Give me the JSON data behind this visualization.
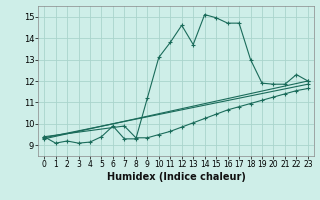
{
  "xlabel": "Humidex (Indice chaleur)",
  "xlim": [
    -0.5,
    23.5
  ],
  "ylim": [
    8.5,
    15.5
  ],
  "xticks": [
    0,
    1,
    2,
    3,
    4,
    5,
    6,
    7,
    8,
    9,
    10,
    11,
    12,
    13,
    14,
    15,
    16,
    17,
    18,
    19,
    20,
    21,
    22,
    23
  ],
  "yticks": [
    9,
    10,
    11,
    12,
    13,
    14,
    15
  ],
  "bg_color": "#ceeee8",
  "line_color": "#1a6b5a",
  "grid_color": "#aad4cc",
  "series": [
    {
      "x": [
        0,
        1,
        2,
        3,
        4,
        5,
        6,
        7,
        8,
        9,
        10,
        11,
        12,
        13,
        14,
        15,
        16,
        17,
        18,
        19,
        20,
        21,
        22,
        23
      ],
      "y": [
        9.4,
        9.1,
        9.2,
        9.1,
        9.15,
        9.4,
        9.9,
        9.3,
        9.3,
        11.2,
        13.1,
        13.8,
        14.6,
        13.7,
        15.1,
        14.95,
        14.7,
        14.7,
        13.0,
        11.9,
        11.85,
        11.85,
        12.3,
        12.0
      ]
    },
    {
      "x": [
        0,
        23
      ],
      "y": [
        9.3,
        12.0
      ]
    },
    {
      "x": [
        0,
        23
      ],
      "y": [
        9.35,
        11.85
      ]
    },
    {
      "x": [
        0,
        7,
        8,
        9,
        10,
        11,
        12,
        13,
        14,
        15,
        16,
        17,
        18,
        19,
        20,
        21,
        22,
        23
      ],
      "y": [
        9.4,
        9.9,
        9.35,
        9.35,
        9.5,
        9.65,
        9.85,
        10.05,
        10.25,
        10.45,
        10.65,
        10.8,
        10.95,
        11.1,
        11.25,
        11.4,
        11.55,
        11.65
      ]
    }
  ]
}
